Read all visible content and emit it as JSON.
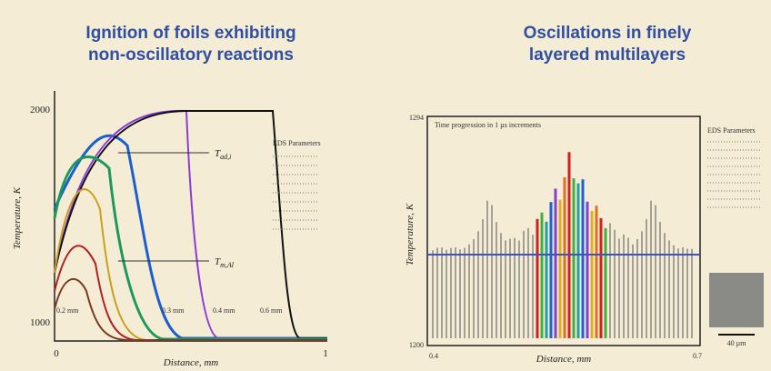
{
  "slide": {
    "left": {
      "title": [
        "Ignition of foils exhibiting",
        "non-oscillatory reactions"
      ],
      "y_label": "Temperature, K",
      "x_label": "Distance, mm",
      "y_ticks": [
        "2000",
        "1000"
      ],
      "x_ticks": [
        "0",
        "1"
      ],
      "annotations": [
        {
          "main": "T",
          "sub": "ad,i"
        },
        {
          "main": "T",
          "sub": "m,Al"
        }
      ],
      "curve_labels": [
        "0.2 mm",
        "0.3 mm",
        "0.4 mm",
        "0.6 mm"
      ],
      "legend_title": "EDS Parameters"
    },
    "right": {
      "title": [
        "Oscillations in finely",
        "layered multilayers"
      ],
      "y_label": "Temperature, K",
      "x_label": "Distance, mm",
      "y_ticks": [
        "1294",
        "1200"
      ],
      "x_ticks": [
        "0.4",
        "0.7"
      ],
      "annotation": "Time progression in 1 µs increments",
      "legend_title": "EDS Parameters",
      "scale_bar": "40 µm"
    }
  }
}
